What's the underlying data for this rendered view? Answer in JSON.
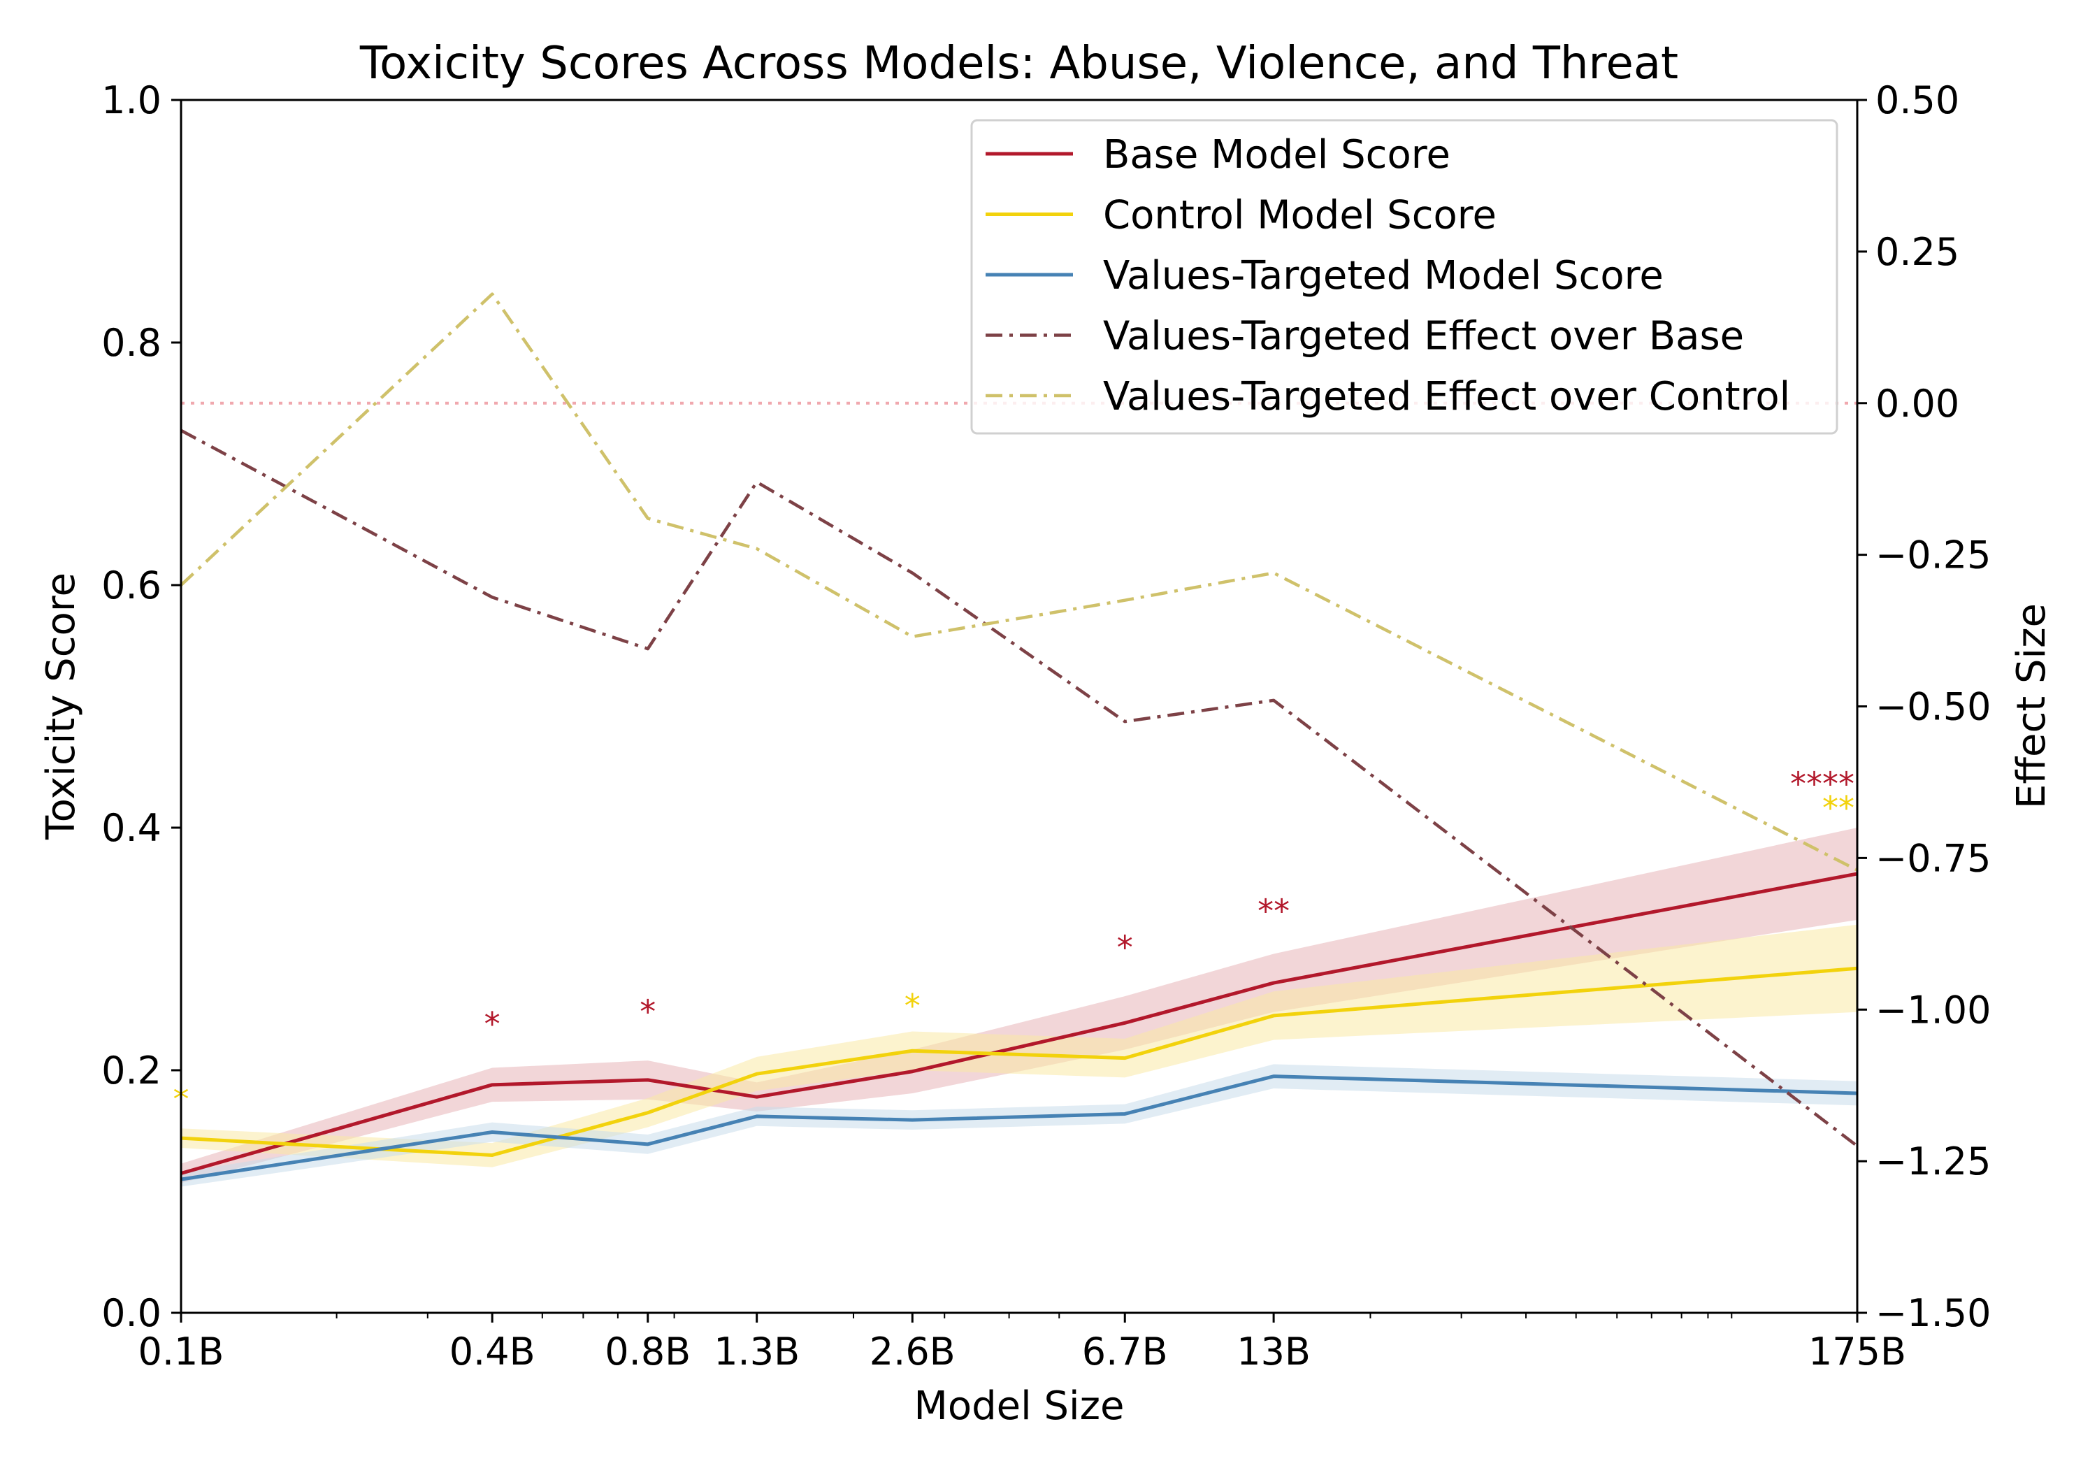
{
  "chart_data": {
    "type": "line",
    "title": "Toxicity Scores Across Models: Abuse, Violence, and Threat",
    "xlabel": "Model Size",
    "ylabel": "Toxicity Score",
    "y2label": "Effect Size",
    "x_scale": "log",
    "x_ticks": [
      {
        "label": "0.1B",
        "value": 0.1
      },
      {
        "label": "0.4B",
        "value": 0.4
      },
      {
        "label": "0.8B",
        "value": 0.8
      },
      {
        "label": "1.3B",
        "value": 1.3
      },
      {
        "label": "2.6B",
        "value": 2.6
      },
      {
        "label": "6.7B",
        "value": 6.7
      },
      {
        "label": "13B",
        "value": 13
      },
      {
        "label": "175B",
        "value": 175
      }
    ],
    "x": [
      0.1,
      0.4,
      0.8,
      1.3,
      2.6,
      6.7,
      13,
      175
    ],
    "ylim": [
      0,
      1.0
    ],
    "y_ticks": [
      "0.0",
      "0.2",
      "0.4",
      "0.6",
      "0.8",
      "1.0"
    ],
    "y2lim": [
      -1.5,
      0.5
    ],
    "y2_ticks": [
      "−1.50",
      "−1.25",
      "−1.00",
      "−0.75",
      "−0.50",
      "−0.25",
      "0.00",
      "0.25",
      "0.50"
    ],
    "series": [
      {
        "name": "Base Model Score",
        "axis": "left",
        "style": "solid",
        "color": "#b2182b",
        "band": "#e8b4b8",
        "values": [
          0.115,
          0.188,
          0.192,
          0.178,
          0.199,
          0.239,
          0.272,
          0.362
        ],
        "band_halfwidth": [
          0.008,
          0.014,
          0.016,
          0.012,
          0.018,
          0.022,
          0.024,
          0.038
        ]
      },
      {
        "name": "Control Model Score",
        "axis": "left",
        "style": "solid",
        "color": "#f2d20c",
        "band": "#faeaa6",
        "values": [
          0.144,
          0.13,
          0.165,
          0.197,
          0.216,
          0.21,
          0.245,
          0.284
        ],
        "band_halfwidth": [
          0.008,
          0.01,
          0.012,
          0.014,
          0.016,
          0.016,
          0.02,
          0.036
        ]
      },
      {
        "name": "Values-Targeted Model Score",
        "axis": "left",
        "style": "solid",
        "color": "#4682b4",
        "band": "#c8dceb",
        "values": [
          0.11,
          0.149,
          0.139,
          0.162,
          0.159,
          0.164,
          0.195,
          0.181
        ],
        "band_halfwidth": [
          0.006,
          0.008,
          0.008,
          0.008,
          0.008,
          0.008,
          0.01,
          0.01
        ]
      },
      {
        "name": "Values-Targeted Effect over Base",
        "axis": "right",
        "style": "dashdot",
        "color": "#7d4146",
        "values": [
          -0.045,
          -0.32,
          -0.405,
          -0.13,
          -0.28,
          -0.525,
          -0.49,
          -1.225
        ]
      },
      {
        "name": "Values-Targeted Effect over Control",
        "axis": "right",
        "style": "dashdot",
        "color": "#cfc16a",
        "values": [
          -0.3,
          0.18,
          -0.19,
          -0.24,
          -0.385,
          -0.325,
          -0.28,
          -0.77
        ]
      }
    ],
    "reference_line": {
      "axis": "right",
      "value": 0.0,
      "style": "dotted",
      "color": "#f0a8ae"
    },
    "significance_markers": [
      {
        "x": 0.1,
        "y": 0.183,
        "text": "*",
        "color": "#f2d20c"
      },
      {
        "x": 0.4,
        "y": 0.245,
        "text": "*",
        "color": "#b2182b"
      },
      {
        "x": 0.8,
        "y": 0.255,
        "text": "*",
        "color": "#b2182b"
      },
      {
        "x": 2.6,
        "y": 0.26,
        "text": "*",
        "color": "#f2d20c"
      },
      {
        "x": 6.7,
        "y": 0.308,
        "text": "*",
        "color": "#b2182b"
      },
      {
        "x": 13,
        "y": 0.338,
        "text": "**",
        "color": "#b2182b"
      },
      {
        "x": 175,
        "y": 0.443,
        "text": "****",
        "color": "#b2182b"
      },
      {
        "x": 175,
        "y": 0.423,
        "text": "**",
        "color": "#f2d20c"
      }
    ],
    "legend_position": "upper-right",
    "grid": false
  }
}
